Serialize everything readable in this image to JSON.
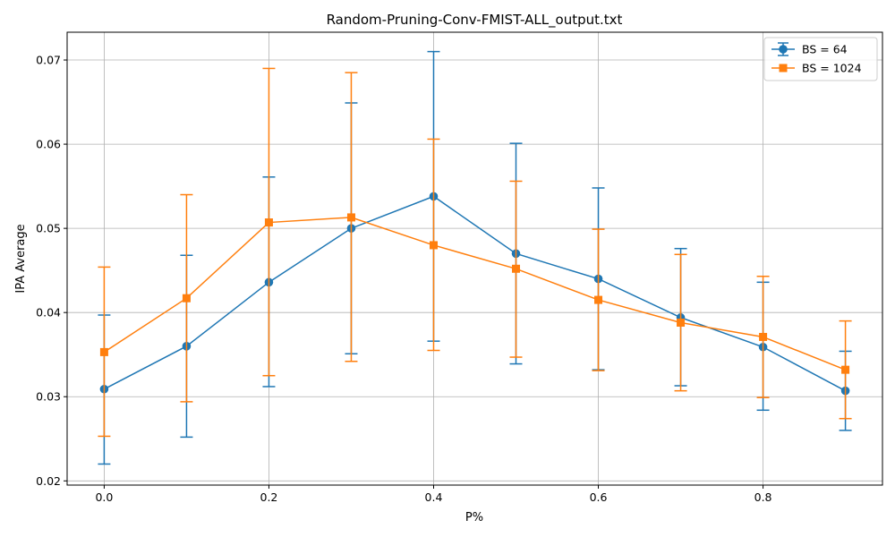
{
  "chart_data": {
    "type": "line",
    "title": "Random-Pruning-Conv-FMIST-ALL_output.txt",
    "xlabel": "P%",
    "ylabel": "IPA Average",
    "xlim": [
      -0.045,
      0.945
    ],
    "ylim": [
      0.0195,
      0.0733
    ],
    "x_ticks": [
      "0.0",
      "0.2",
      "0.4",
      "0.6",
      "0.8"
    ],
    "x_tick_values": [
      0.0,
      0.2,
      0.4,
      0.6,
      0.8
    ],
    "y_ticks": [
      "0.02",
      "0.03",
      "0.04",
      "0.05",
      "0.06",
      "0.07"
    ],
    "y_tick_values": [
      0.02,
      0.03,
      0.04,
      0.05,
      0.06,
      0.07
    ],
    "grid": true,
    "legend_position": "top-right",
    "x": [
      0.0,
      0.1,
      0.2,
      0.3,
      0.4,
      0.5,
      0.6,
      0.7,
      0.8,
      0.9
    ],
    "series": [
      {
        "name": "BS = 64",
        "color": "#1f77b4",
        "marker": "circle",
        "values": [
          0.0309,
          0.036,
          0.0436,
          0.05,
          0.0538,
          0.047,
          0.044,
          0.0394,
          0.0359,
          0.0307
        ],
        "err_low": [
          0.022,
          0.0252,
          0.0312,
          0.0351,
          0.0366,
          0.0339,
          0.0332,
          0.0313,
          0.0284,
          0.026
        ],
        "err_high": [
          0.0397,
          0.0468,
          0.0561,
          0.0649,
          0.071,
          0.0601,
          0.0548,
          0.0476,
          0.0436,
          0.0354
        ]
      },
      {
        "name": "BS = 1024",
        "color": "#ff7f0e",
        "marker": "square",
        "values": [
          0.0353,
          0.0417,
          0.0507,
          0.0513,
          0.048,
          0.0452,
          0.0415,
          0.0388,
          0.0371,
          0.0332
        ],
        "err_low": [
          0.0253,
          0.0294,
          0.0325,
          0.0342,
          0.0355,
          0.0347,
          0.0331,
          0.0307,
          0.0299,
          0.0274
        ],
        "err_high": [
          0.0454,
          0.054,
          0.069,
          0.0685,
          0.0606,
          0.0556,
          0.0499,
          0.0469,
          0.0443,
          0.039
        ]
      }
    ]
  }
}
